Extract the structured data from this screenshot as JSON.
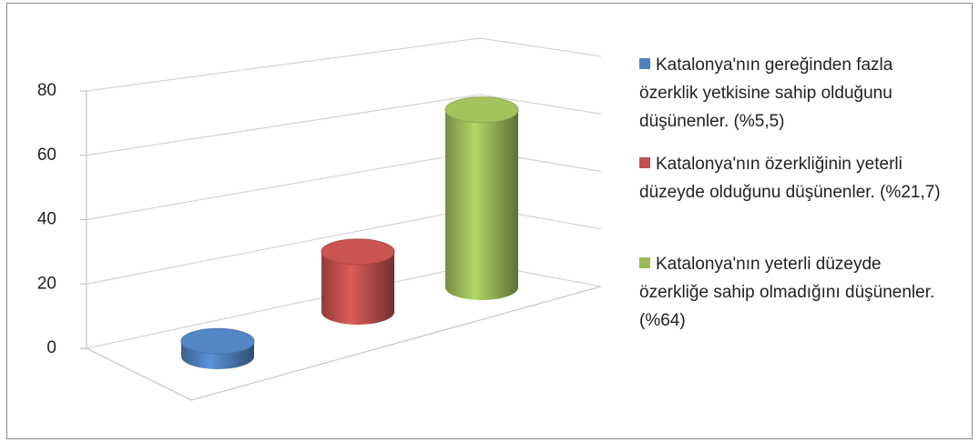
{
  "chart_data": {
    "type": "bar3d",
    "categories": [
      null
    ],
    "series": [
      {
        "name": "Katalonya'nın gereğinden fazla özerklik yetkisine sahip olduğunu düşünenler. (%5,5)",
        "color": "#4f81bd",
        "values": [
          5.5
        ]
      },
      {
        "name": "Katalonya'nın özerkliğinin yeterli düzeyde olduğunu düşünenler. (%21,7)",
        "color": "#c0504d",
        "values": [
          21.7
        ]
      },
      {
        "name": "Katalonya'nın yeterli düzeyde özerkliğe sahip olmadığını düşünenler. (%64)",
        "color": "#9bbb59",
        "values": [
          64
        ]
      }
    ],
    "ylim": [
      0,
      80
    ],
    "yticks": [
      0,
      20,
      40,
      60,
      80
    ],
    "grid": true,
    "legend": "right"
  }
}
